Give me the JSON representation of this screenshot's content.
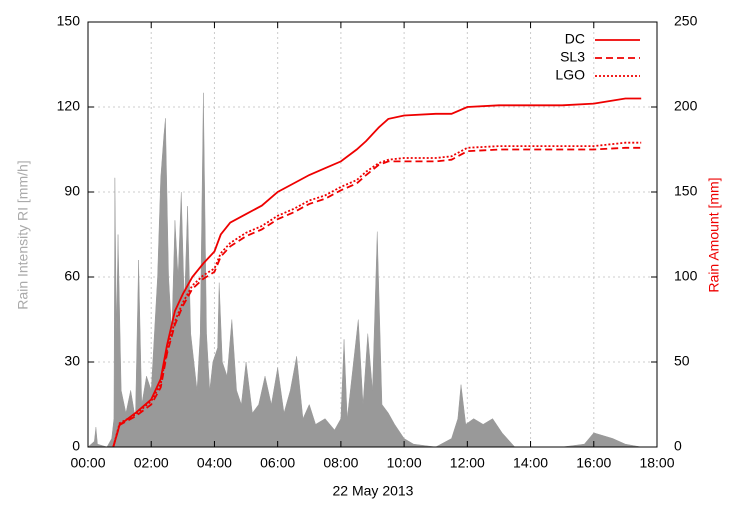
{
  "chart_data": [
    {
      "type": "area",
      "ylabel": "Rain Intensity RI [mm/h]",
      "xlabel": "22 May 2013",
      "color": "#999999",
      "grid": true,
      "xlim": [
        0,
        18
      ],
      "xticks": [
        {
          "value": 0,
          "label": "00:00"
        },
        {
          "value": 2,
          "label": "02:00"
        },
        {
          "value": 4,
          "label": "04:00"
        },
        {
          "value": 6,
          "label": "06:00"
        },
        {
          "value": 8,
          "label": "08:00"
        },
        {
          "value": 10,
          "label": "10:00"
        },
        {
          "value": 12,
          "label": "12:00"
        },
        {
          "value": 14,
          "label": "14:00"
        },
        {
          "value": 16,
          "label": "16:00"
        },
        {
          "value": 18,
          "label": "18:00"
        }
      ],
      "ylim": [
        0,
        150
      ],
      "yticks": [
        0,
        30,
        60,
        90,
        120,
        150
      ],
      "x": [
        0,
        0.2,
        0.25,
        0.3,
        0.6,
        0.75,
        0.82,
        0.85,
        0.9,
        0.95,
        1.05,
        1.2,
        1.35,
        1.5,
        1.6,
        1.7,
        1.85,
        2.0,
        2.1,
        2.2,
        2.3,
        2.4,
        2.45,
        2.55,
        2.65,
        2.75,
        2.85,
        2.95,
        3.05,
        3.15,
        3.25,
        3.35,
        3.45,
        3.55,
        3.65,
        3.75,
        3.85,
        3.95,
        4.1,
        4.15,
        4.25,
        4.4,
        4.55,
        4.7,
        4.85,
        5.0,
        5.2,
        5.4,
        5.6,
        5.8,
        6.0,
        6.2,
        6.4,
        6.6,
        6.8,
        7.0,
        7.2,
        7.5,
        7.8,
        8.0,
        8.1,
        8.2,
        8.4,
        8.55,
        8.7,
        8.85,
        9.0,
        9.15,
        9.3,
        9.5,
        9.7,
        10.0,
        10.3,
        11.0,
        11.5,
        11.7,
        11.8,
        11.95,
        12.2,
        12.5,
        12.8,
        13.1,
        13.5,
        15.0,
        15.7,
        16.0,
        16.3,
        16.6,
        17.0,
        17.5
      ],
      "values": [
        0,
        2,
        7,
        1,
        0,
        3,
        10,
        95,
        40,
        75,
        20,
        12,
        20,
        10,
        66,
        15,
        25,
        20,
        40,
        60,
        95,
        110,
        116,
        60,
        40,
        80,
        60,
        90,
        50,
        85,
        40,
        30,
        20,
        40,
        125,
        40,
        20,
        30,
        35,
        58,
        30,
        25,
        45,
        20,
        15,
        30,
        12,
        15,
        25,
        15,
        28,
        12,
        20,
        32,
        10,
        15,
        8,
        10,
        6,
        10,
        38,
        10,
        30,
        45,
        15,
        40,
        20,
        76,
        15,
        12,
        8,
        3,
        1,
        0,
        3,
        10,
        22,
        8,
        10,
        8,
        10,
        5,
        0,
        0,
        1,
        5,
        4,
        3,
        1,
        0
      ]
    },
    {
      "type": "line",
      "y2label": "Rain Amount [mm]",
      "y2lim": [
        0,
        250
      ],
      "y2ticks": [
        0,
        50,
        100,
        150,
        200,
        250
      ],
      "legend": "top-right",
      "x": [
        0.8,
        1.0,
        1.5,
        2.0,
        2.3,
        2.5,
        2.75,
        3.0,
        3.3,
        3.65,
        4.0,
        4.2,
        4.5,
        5.0,
        5.5,
        6.0,
        6.5,
        7.0,
        7.5,
        8.0,
        8.5,
        8.8,
        9.2,
        9.5,
        10.0,
        11.0,
        11.5,
        12.0,
        13.0,
        15.0,
        16.0,
        17.0,
        17.5
      ],
      "series": [
        {
          "name": "DC",
          "color": "#ee0000",
          "dash": "solid",
          "axis": "y2",
          "values": [
            0,
            13,
            20,
            28,
            40,
            60,
            80,
            90,
            100,
            108,
            115,
            125,
            132,
            137,
            142,
            150,
            155,
            160,
            164,
            168,
            175,
            180,
            188,
            193,
            195,
            196,
            196,
            200,
            201,
            201,
            202,
            205,
            205
          ]
        },
        {
          "name": "SL3",
          "color": "#ee0000",
          "dash": "dashed",
          "axis": "y2",
          "values": [
            0,
            13,
            18,
            25,
            35,
            55,
            72,
            83,
            93,
            99,
            103,
            112,
            118,
            124,
            128,
            134,
            138,
            143,
            146,
            151,
            155,
            160,
            166,
            168,
            168,
            168,
            169,
            174,
            175,
            175,
            175,
            176,
            176
          ]
        },
        {
          "name": "LGO",
          "color": "#ee0000",
          "dash": "dotted",
          "axis": "y2",
          "values": [
            0,
            14,
            19,
            27,
            37,
            57,
            74,
            85,
            95,
            101,
            105,
            114,
            120,
            126,
            130,
            136,
            140,
            145,
            148,
            153,
            157,
            162,
            167,
            169,
            170,
            170,
            171,
            176,
            177,
            177,
            177,
            179,
            179
          ]
        }
      ]
    }
  ]
}
